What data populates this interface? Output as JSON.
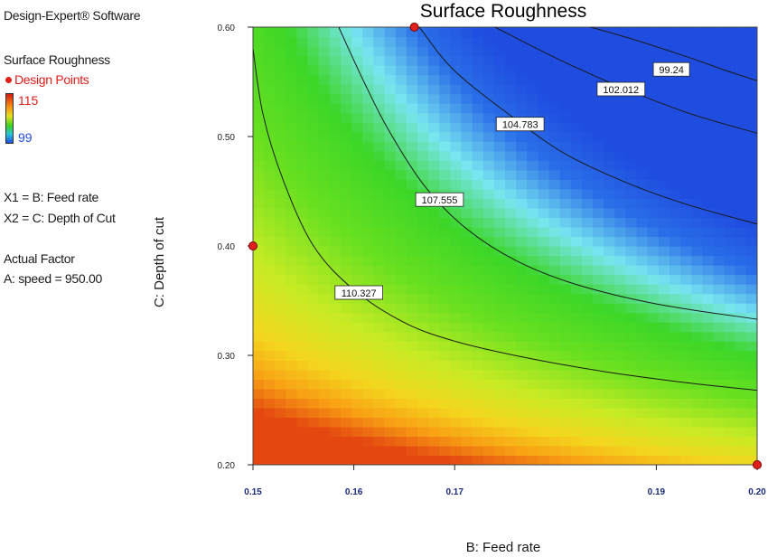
{
  "software_label": "Design-Expert® Software",
  "legend": {
    "response_label": "Surface Roughness",
    "design_points_label": "Design Points",
    "high_value": "115",
    "low_value": "99",
    "x1_label": "X1 = B: Feed rate",
    "x2_label": "X2 = C: Depth of Cut",
    "actual_factor_heading": "Actual Factor",
    "actual_factor_value": "A: speed = 950.00"
  },
  "colors": {
    "high": "#d41a12",
    "mid": "#3bd21e",
    "low": "#1f4de0",
    "design_point": "#e0201b"
  },
  "chart_data": {
    "type": "heatmap",
    "subtype": "contour",
    "title": "Surface Roughness",
    "xlabel": "B: Feed rate",
    "ylabel": "C: Depth of cut",
    "xlim": [
      0.15,
      0.2
    ],
    "ylim": [
      0.2,
      0.6
    ],
    "x_ticks": [
      "0.15",
      "0.16",
      "0.17",
      "0.19",
      "0.20"
    ],
    "y_ticks": [
      "0.20",
      "0.30",
      "0.40",
      "0.50",
      "0.60"
    ],
    "color_range": [
      99,
      115
    ],
    "contours": [
      {
        "level": "99.24",
        "points": [
          [
            0.1835,
            0.6
          ],
          [
            0.188,
            0.588
          ],
          [
            0.193,
            0.573
          ],
          [
            0.197,
            0.56
          ],
          [
            0.2,
            0.551
          ]
        ]
      },
      {
        "level": "102.012",
        "points": [
          [
            0.174,
            0.6
          ],
          [
            0.18,
            0.572
          ],
          [
            0.186,
            0.547
          ],
          [
            0.193,
            0.522
          ],
          [
            0.2,
            0.503
          ]
        ]
      },
      {
        "level": "104.783",
        "points": [
          [
            0.1665,
            0.6
          ],
          [
            0.17,
            0.56
          ],
          [
            0.176,
            0.516
          ],
          [
            0.181,
            0.484
          ],
          [
            0.187,
            0.458
          ],
          [
            0.193,
            0.438
          ],
          [
            0.2,
            0.42
          ]
        ]
      },
      {
        "level": "107.555",
        "points": [
          [
            0.1585,
            0.6
          ],
          [
            0.161,
            0.55
          ],
          [
            0.1635,
            0.505
          ],
          [
            0.167,
            0.455
          ],
          [
            0.171,
            0.417
          ],
          [
            0.176,
            0.387
          ],
          [
            0.182,
            0.365
          ],
          [
            0.19,
            0.347
          ],
          [
            0.2,
            0.333
          ]
        ]
      },
      {
        "level": "110.327",
        "points": [
          [
            0.15,
            0.58
          ],
          [
            0.151,
            0.52
          ],
          [
            0.153,
            0.46
          ],
          [
            0.156,
            0.4
          ],
          [
            0.16,
            0.36
          ],
          [
            0.165,
            0.33
          ],
          [
            0.17,
            0.313
          ],
          [
            0.177,
            0.298
          ],
          [
            0.185,
            0.285
          ],
          [
            0.193,
            0.275
          ],
          [
            0.2,
            0.268
          ]
        ]
      }
    ],
    "design_points": [
      {
        "x": 0.15,
        "y": 0.4
      },
      {
        "x": 0.166,
        "y": 0.6
      },
      {
        "x": 0.2,
        "y": 0.2
      }
    ]
  }
}
